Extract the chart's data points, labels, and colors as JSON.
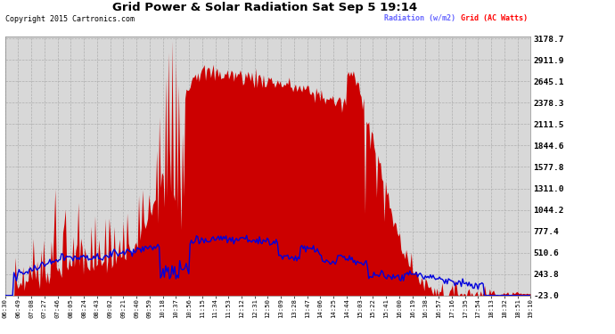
{
  "title": "Grid Power & Solar Radiation Sat Sep 5 19:14",
  "copyright": "Copyright 2015 Cartronics.com",
  "legend_radiation": "Radiation (w/m2)",
  "legend_grid": "Grid (AC Watts)",
  "yticks": [
    3178.7,
    2911.9,
    2645.1,
    2378.3,
    2111.5,
    1844.6,
    1577.8,
    1311.0,
    1044.2,
    777.4,
    510.6,
    243.8,
    -23.0
  ],
  "ymin": -23.0,
  "ymax": 3178.7,
  "background_color": "#ffffff",
  "plot_bg_color": "#d8d8d8",
  "grid_color": "#aaaaaa",
  "fill_color": "#cc0000",
  "line_color": "#0000dd",
  "legend_bg": "#000080",
  "legend_rad_color": "#6666ff",
  "legend_grid_color": "#ff0000",
  "x_labels": [
    "06:30",
    "06:49",
    "07:08",
    "07:27",
    "07:46",
    "08:05",
    "08:24",
    "08:43",
    "09:02",
    "09:21",
    "09:40",
    "09:59",
    "10:18",
    "10:37",
    "10:56",
    "11:15",
    "11:34",
    "11:53",
    "12:12",
    "12:31",
    "12:50",
    "13:09",
    "13:28",
    "13:47",
    "14:06",
    "14:25",
    "14:44",
    "15:03",
    "15:22",
    "15:41",
    "16:00",
    "16:19",
    "16:38",
    "16:57",
    "17:16",
    "17:35",
    "17:54",
    "18:13",
    "18:32",
    "18:51",
    "19:10"
  ]
}
